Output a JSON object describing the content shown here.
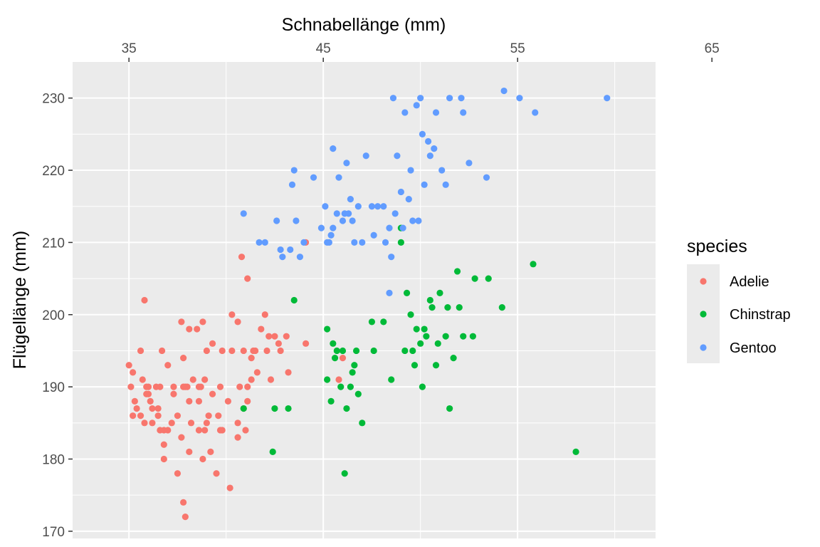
{
  "chart_data": {
    "type": "scatter",
    "xlabel": "Schnabellänge (mm)",
    "ylabel": "Flügellänge (mm)",
    "x_axis_position": "top",
    "xlim": [
      32.1,
      62.1
    ],
    "ylim": [
      169,
      235
    ],
    "x_ticks": [
      35,
      45,
      55,
      65
    ],
    "y_ticks": [
      170,
      180,
      190,
      200,
      210,
      220,
      230
    ],
    "grid": true,
    "legend": {
      "title": "species",
      "position": "right"
    },
    "series": [
      {
        "name": "Adelie",
        "color": "#F8766D",
        "points": [
          [
            35.0,
            193
          ],
          [
            35.1,
            190
          ],
          [
            35.2,
            186
          ],
          [
            35.2,
            192
          ],
          [
            35.3,
            188
          ],
          [
            35.4,
            187
          ],
          [
            35.6,
            186
          ],
          [
            35.6,
            195
          ],
          [
            35.7,
            191
          ],
          [
            35.8,
            202
          ],
          [
            35.8,
            185
          ],
          [
            35.9,
            189
          ],
          [
            35.9,
            190
          ],
          [
            36.0,
            190
          ],
          [
            36.0,
            189
          ],
          [
            36.1,
            188
          ],
          [
            36.2,
            187
          ],
          [
            36.2,
            185
          ],
          [
            36.4,
            190
          ],
          [
            36.5,
            187
          ],
          [
            36.5,
            186
          ],
          [
            36.6,
            184
          ],
          [
            36.6,
            190
          ],
          [
            36.7,
            195
          ],
          [
            36.8,
            184
          ],
          [
            36.8,
            180
          ],
          [
            36.8,
            182
          ],
          [
            37.0,
            184
          ],
          [
            37.0,
            193
          ],
          [
            37.2,
            185
          ],
          [
            37.3,
            189
          ],
          [
            37.3,
            190
          ],
          [
            37.5,
            178
          ],
          [
            37.5,
            186
          ],
          [
            37.7,
            183
          ],
          [
            37.7,
            199
          ],
          [
            37.8,
            190
          ],
          [
            37.8,
            174
          ],
          [
            37.8,
            194
          ],
          [
            37.9,
            190
          ],
          [
            37.9,
            172
          ],
          [
            38.0,
            190
          ],
          [
            38.1,
            188
          ],
          [
            38.1,
            181
          ],
          [
            38.1,
            198
          ],
          [
            38.2,
            185
          ],
          [
            38.3,
            191
          ],
          [
            38.5,
            198
          ],
          [
            38.6,
            184
          ],
          [
            38.6,
            190
          ],
          [
            38.6,
            188
          ],
          [
            38.7,
            190
          ],
          [
            38.8,
            180
          ],
          [
            38.8,
            199
          ],
          [
            38.9,
            184
          ],
          [
            38.9,
            191
          ],
          [
            39.0,
            195
          ],
          [
            39.0,
            185
          ],
          [
            39.1,
            186
          ],
          [
            39.2,
            181
          ],
          [
            39.3,
            196
          ],
          [
            39.3,
            189
          ],
          [
            39.5,
            178
          ],
          [
            39.6,
            186
          ],
          [
            39.7,
            184
          ],
          [
            39.7,
            190
          ],
          [
            39.8,
            184
          ],
          [
            39.8,
            195
          ],
          [
            40.1,
            188
          ],
          [
            40.2,
            176
          ],
          [
            40.3,
            195
          ],
          [
            40.3,
            200
          ],
          [
            40.6,
            183
          ],
          [
            40.6,
            185
          ],
          [
            40.6,
            199
          ],
          [
            40.7,
            190
          ],
          [
            40.8,
            208
          ],
          [
            40.9,
            187
          ],
          [
            40.9,
            195
          ],
          [
            41.0,
            184
          ],
          [
            41.1,
            190
          ],
          [
            41.1,
            205
          ],
          [
            41.1,
            188
          ],
          [
            41.3,
            194
          ],
          [
            41.3,
            191
          ],
          [
            41.4,
            195
          ],
          [
            41.5,
            195
          ],
          [
            41.6,
            192
          ],
          [
            41.8,
            198
          ],
          [
            42.0,
            200
          ],
          [
            42.1,
            195
          ],
          [
            42.2,
            197
          ],
          [
            42.3,
            191
          ],
          [
            42.5,
            197
          ],
          [
            42.7,
            196
          ],
          [
            42.8,
            195
          ],
          [
            43.1,
            197
          ],
          [
            43.2,
            192
          ],
          [
            44.1,
            196
          ],
          [
            44.1,
            210
          ],
          [
            45.8,
            191
          ],
          [
            46.0,
            194
          ]
        ]
      },
      {
        "name": "Chinstrap",
        "color": "#00BA38",
        "points": [
          [
            40.9,
            187
          ],
          [
            42.4,
            181
          ],
          [
            42.5,
            187
          ],
          [
            43.2,
            187
          ],
          [
            43.5,
            202
          ],
          [
            45.2,
            198
          ],
          [
            45.2,
            191
          ],
          [
            45.4,
            188
          ],
          [
            45.5,
            196
          ],
          [
            45.6,
            194
          ],
          [
            45.7,
            195
          ],
          [
            45.9,
            190
          ],
          [
            46.0,
            195
          ],
          [
            46.1,
            178
          ],
          [
            46.2,
            187
          ],
          [
            46.4,
            190
          ],
          [
            46.5,
            192
          ],
          [
            46.6,
            193
          ],
          [
            46.7,
            195
          ],
          [
            46.8,
            189
          ],
          [
            47.0,
            185
          ],
          [
            47.5,
            199
          ],
          [
            47.6,
            195
          ],
          [
            48.1,
            199
          ],
          [
            48.5,
            191
          ],
          [
            49.0,
            210
          ],
          [
            49.2,
            195
          ],
          [
            49.3,
            203
          ],
          [
            49.5,
            200
          ],
          [
            49.6,
            195
          ],
          [
            49.7,
            193
          ],
          [
            49.8,
            198
          ],
          [
            50.0,
            196
          ],
          [
            50.1,
            190
          ],
          [
            50.2,
            198
          ],
          [
            50.3,
            197
          ],
          [
            50.5,
            202
          ],
          [
            50.6,
            201
          ],
          [
            50.8,
            193
          ],
          [
            50.9,
            196
          ],
          [
            51.0,
            203
          ],
          [
            51.3,
            197
          ],
          [
            51.4,
            201
          ],
          [
            51.5,
            187
          ],
          [
            51.7,
            194
          ],
          [
            51.9,
            206
          ],
          [
            52.0,
            201
          ],
          [
            52.2,
            197
          ],
          [
            52.7,
            197
          ],
          [
            52.8,
            205
          ],
          [
            53.5,
            205
          ],
          [
            54.2,
            201
          ],
          [
            55.8,
            207
          ],
          [
            58.0,
            181
          ],
          [
            49.0,
            212
          ]
        ]
      },
      {
        "name": "Gentoo",
        "color": "#619CFF",
        "points": [
          [
            40.9,
            214
          ],
          [
            41.7,
            210
          ],
          [
            42.0,
            210
          ],
          [
            42.6,
            213
          ],
          [
            42.8,
            209
          ],
          [
            42.9,
            208
          ],
          [
            43.3,
            209
          ],
          [
            43.4,
            218
          ],
          [
            43.5,
            220
          ],
          [
            43.6,
            213
          ],
          [
            43.8,
            208
          ],
          [
            44.0,
            210
          ],
          [
            44.5,
            219
          ],
          [
            44.9,
            212
          ],
          [
            45.1,
            215
          ],
          [
            45.2,
            210
          ],
          [
            45.3,
            210
          ],
          [
            45.4,
            211
          ],
          [
            45.5,
            212
          ],
          [
            45.5,
            223
          ],
          [
            45.7,
            214
          ],
          [
            45.8,
            219
          ],
          [
            46.0,
            213
          ],
          [
            46.1,
            214
          ],
          [
            46.2,
            221
          ],
          [
            46.3,
            214
          ],
          [
            46.4,
            216
          ],
          [
            46.5,
            213
          ],
          [
            46.6,
            210
          ],
          [
            46.8,
            215
          ],
          [
            47.0,
            210
          ],
          [
            47.2,
            222
          ],
          [
            47.5,
            215
          ],
          [
            47.6,
            211
          ],
          [
            47.8,
            215
          ],
          [
            48.1,
            215
          ],
          [
            48.2,
            210
          ],
          [
            48.4,
            212
          ],
          [
            48.5,
            208
          ],
          [
            48.6,
            230
          ],
          [
            48.7,
            214
          ],
          [
            48.8,
            222
          ],
          [
            49.0,
            217
          ],
          [
            49.1,
            212
          ],
          [
            49.2,
            228
          ],
          [
            49.4,
            216
          ],
          [
            49.5,
            220
          ],
          [
            49.6,
            213
          ],
          [
            49.8,
            229
          ],
          [
            49.9,
            213
          ],
          [
            50.0,
            230
          ],
          [
            50.1,
            225
          ],
          [
            50.2,
            218
          ],
          [
            50.4,
            224
          ],
          [
            50.5,
            222
          ],
          [
            50.7,
            223
          ],
          [
            50.8,
            228
          ],
          [
            51.1,
            220
          ],
          [
            51.3,
            218
          ],
          [
            51.5,
            230
          ],
          [
            52.1,
            230
          ],
          [
            52.2,
            228
          ],
          [
            52.5,
            221
          ],
          [
            53.4,
            219
          ],
          [
            54.3,
            231
          ],
          [
            55.1,
            230
          ],
          [
            55.9,
            228
          ],
          [
            59.6,
            230
          ],
          [
            48.4,
            203
          ]
        ]
      }
    ]
  }
}
